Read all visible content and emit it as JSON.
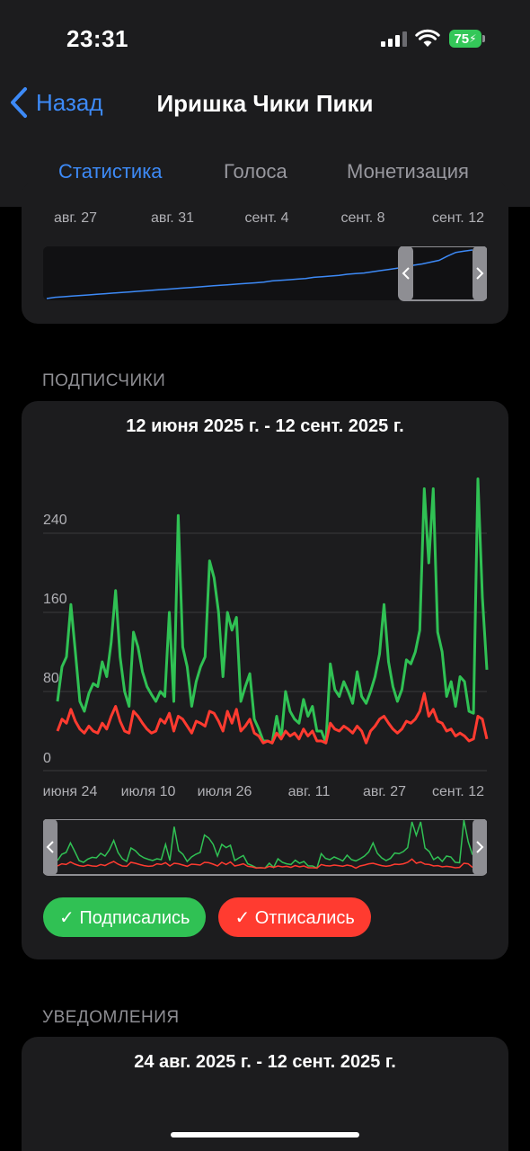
{
  "status_bar": {
    "time": "23:31",
    "battery": "75"
  },
  "nav": {
    "back_label": "Назад",
    "title": "Иришка Чики Пики",
    "tabs": [
      {
        "label": "Статистика",
        "active": true
      },
      {
        "label": "Голоса",
        "active": false
      },
      {
        "label": "Монетизация",
        "active": false
      }
    ]
  },
  "top_chart": {
    "x_ticks": [
      "авг. 27",
      "авг. 31",
      "сент. 4",
      "сент. 8",
      "сент. 12"
    ]
  },
  "subscribers": {
    "section_header": "ПОДПИСЧИКИ",
    "range_title": "12 июня 2025 г. - 12 сент. 2025 г.",
    "y_ticks": [
      "0",
      "80",
      "160",
      "240"
    ],
    "x_ticks": [
      "июня 24",
      "июля 10",
      "июля 26",
      "авг. 11",
      "авг. 27",
      "сент. 12"
    ],
    "legend": [
      {
        "label": "✓ Подписались",
        "color": "#30c154"
      },
      {
        "label": "✓ Отписались",
        "color": "#ff3b30"
      }
    ]
  },
  "notifications": {
    "section_header": "УВЕДОМЛЕНИЯ",
    "range_title": "24 авг. 2025 г. - 12 сент. 2025 г."
  },
  "chart_data": {
    "type": "line",
    "ylim": [
      0,
      280
    ],
    "series": [
      {
        "name": "Подписались",
        "color": "#30c154",
        "values": [
          70,
          105,
          115,
          168,
          120,
          70,
          60,
          78,
          88,
          85,
          110,
          95,
          130,
          182,
          115,
          80,
          65,
          140,
          125,
          100,
          85,
          77,
          70,
          80,
          75,
          160,
          70,
          258,
          125,
          105,
          65,
          90,
          105,
          115,
          212,
          195,
          160,
          95,
          160,
          142,
          155,
          70,
          85,
          98,
          52,
          42,
          30,
          30,
          28,
          55,
          32,
          80,
          60,
          52,
          48,
          72,
          55,
          65,
          40,
          40,
          28,
          108,
          82,
          75,
          90,
          80,
          68,
          100,
          75,
          68,
          80,
          95,
          118,
          168,
          110,
          85,
          70,
          82,
          112,
          108,
          120,
          142,
          285,
          210,
          285,
          140,
          120,
          75,
          90,
          65,
          95,
          90,
          60,
          58,
          295,
          175,
          102
        ]
      },
      {
        "name": "Отписались",
        "color": "#ff3b30",
        "values": [
          40,
          52,
          48,
          62,
          50,
          42,
          38,
          45,
          40,
          38,
          48,
          42,
          55,
          65,
          50,
          40,
          38,
          60,
          55,
          48,
          42,
          38,
          40,
          52,
          48,
          58,
          40,
          55,
          52,
          45,
          38,
          50,
          48,
          45,
          60,
          58,
          50,
          40,
          60,
          48,
          62,
          40,
          45,
          52,
          38,
          35,
          28,
          30,
          28,
          38,
          32,
          40,
          35,
          38,
          32,
          42,
          35,
          40,
          30,
          30,
          28,
          48,
          42,
          40,
          45,
          42,
          38,
          45,
          40,
          28,
          40,
          45,
          52,
          55,
          48,
          42,
          38,
          42,
          50,
          48,
          52,
          60,
          78,
          55,
          62,
          50,
          48,
          40,
          42,
          35,
          38,
          35,
          30,
          32,
          55,
          52,
          32
        ]
      }
    ]
  },
  "top_chart_data": {
    "type": "line",
    "series": [
      {
        "name": "",
        "color": "#3d8af7",
        "values": [
          0,
          2,
          3,
          4,
          5,
          6,
          7,
          8,
          9,
          10,
          11,
          12,
          13,
          14,
          15,
          16,
          17,
          18,
          19,
          20,
          21,
          22,
          23,
          24,
          25,
          26,
          27,
          29,
          30,
          31,
          32,
          33,
          35,
          36,
          37,
          38,
          40,
          41,
          42,
          44,
          46,
          48,
          50,
          52,
          55,
          57,
          60,
          63,
          70,
          76,
          78,
          80
        ]
      }
    ]
  }
}
